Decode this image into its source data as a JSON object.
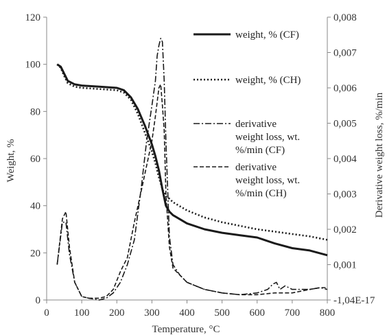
{
  "chart_data": {
    "type": "line",
    "xlabel": "Temperature, °C",
    "ylabel": "Weight, %",
    "y2label": "Derivative weight loss, %/min",
    "xlim": [
      0,
      800
    ],
    "ylim": [
      0,
      120
    ],
    "y2lim": [
      0,
      0.008
    ],
    "xticks": [
      "0",
      "100",
      "200",
      "300",
      "400",
      "500",
      "600",
      "700",
      "800"
    ],
    "yticks": [
      "0",
      "20",
      "40",
      "60",
      "80",
      "100",
      "120"
    ],
    "y2ticks": [
      "-1,04E-17",
      "0,001",
      "0,002",
      "0,003",
      "0,004",
      "0,005",
      "0,006",
      "0,007",
      "0,008"
    ],
    "grid": false,
    "legend_position": "right",
    "series": [
      {
        "name": "weight, % (CF)",
        "axis": "left",
        "style": "solid",
        "x": [
          30,
          40,
          50,
          60,
          80,
          100,
          150,
          200,
          220,
          240,
          260,
          280,
          300,
          310,
          320,
          330,
          340,
          350,
          360,
          400,
          450,
          500,
          550,
          600,
          620,
          650,
          700,
          750,
          800
        ],
        "y": [
          100,
          99,
          96,
          93,
          91.5,
          91,
          90.5,
          90,
          89,
          86,
          81,
          74,
          66,
          61,
          55,
          47,
          40,
          37.5,
          36,
          32.5,
          30,
          28.5,
          27.5,
          26.5,
          25.5,
          24,
          22,
          21,
          19
        ]
      },
      {
        "name": "weight, % (CH)",
        "axis": "left",
        "style": "dotted",
        "x": [
          30,
          40,
          50,
          60,
          80,
          100,
          150,
          200,
          220,
          240,
          260,
          280,
          300,
          310,
          320,
          330,
          340,
          345,
          350,
          360,
          400,
          450,
          500,
          550,
          600,
          650,
          700,
          750,
          800
        ],
        "y": [
          100,
          98.5,
          95,
          92,
          90.5,
          90,
          89.5,
          89,
          88,
          85,
          79,
          71,
          63,
          58,
          52,
          47,
          44,
          43.5,
          43,
          41.5,
          38,
          35,
          33,
          31.5,
          30,
          29,
          28,
          27,
          25.5
        ]
      },
      {
        "name": "derivative weight loss, wt. %/min (CF)",
        "axis": "right",
        "style": "dash-dot",
        "x": [
          30,
          45,
          55,
          65,
          80,
          100,
          120,
          150,
          170,
          190,
          210,
          230,
          250,
          270,
          285,
          300,
          310,
          315,
          320,
          325,
          330,
          335,
          340,
          350,
          360,
          380,
          400,
          450,
          500,
          550,
          600,
          630,
          645,
          655,
          665,
          680,
          700,
          750,
          780,
          800
        ],
        "y": [
          0.001,
          0.0022,
          0.0022,
          0.0013,
          0.0005,
          0.0001,
          5e-05,
          0,
          5e-05,
          0.0002,
          0.0005,
          0.001,
          0.0017,
          0.0032,
          0.0045,
          0.0055,
          0.0062,
          0.0069,
          0.0072,
          0.0074,
          0.0073,
          0.0062,
          0.0045,
          0.0018,
          0.001,
          0.0007,
          0.0005,
          0.0003,
          0.0002,
          0.00015,
          0.0002,
          0.0003,
          0.00045,
          0.0005,
          0.0003,
          0.0004,
          0.0003,
          0.0003,
          0.00035,
          0.0003
        ]
      },
      {
        "name": "derivative weight loss, wt. %/min (CH)",
        "axis": "right",
        "style": "dashed",
        "x": [
          30,
          45,
          55,
          65,
          80,
          100,
          120,
          150,
          170,
          190,
          210,
          230,
          250,
          270,
          285,
          300,
          310,
          320,
          325,
          330,
          335,
          340,
          350,
          360,
          380,
          400,
          450,
          500,
          550,
          600,
          650,
          700,
          750,
          780,
          800
        ],
        "y": [
          0.001,
          0.0023,
          0.0025,
          0.0015,
          0.0005,
          0.0001,
          5e-05,
          5e-05,
          0.0001,
          0.0003,
          0.0008,
          0.0012,
          0.0022,
          0.0031,
          0.0038,
          0.0045,
          0.0052,
          0.006,
          0.0061,
          0.0055,
          0.0048,
          0.003,
          0.0015,
          0.0009,
          0.0007,
          0.0005,
          0.0003,
          0.0002,
          0.00015,
          0.00015,
          0.0002,
          0.0002,
          0.0003,
          0.00035,
          0.00035
        ]
      }
    ]
  }
}
